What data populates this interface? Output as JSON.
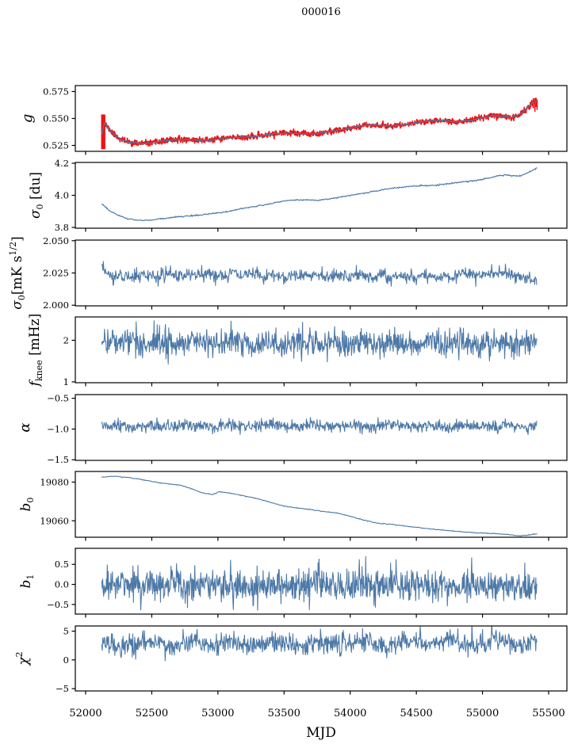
{
  "chart_data": {
    "type": "line",
    "title": "000016",
    "xlabel": "MJD",
    "xlim": [
      51922,
      55638
    ],
    "x_data_range": [
      52122,
      55410
    ],
    "xticks": [
      {
        "v": 52000,
        "label": "52000"
      },
      {
        "v": 52500,
        "label": "52500"
      },
      {
        "v": 53000,
        "label": "53000"
      },
      {
        "v": 53500,
        "label": "53500"
      },
      {
        "v": 54000,
        "label": "54000"
      },
      {
        "v": 54500,
        "label": "54500"
      },
      {
        "v": 55000,
        "label": "55000"
      },
      {
        "v": 55500,
        "label": "55500"
      }
    ],
    "colors": {
      "blue": "#4d79a7",
      "red": "#f21111",
      "axis": "#000000",
      "background": "#ffffff"
    },
    "panels": [
      {
        "name": "g",
        "ylabel": [
          {
            "t": "g",
            "italic": true
          }
        ],
        "ylim": [
          0.5195,
          0.5805
        ],
        "yticks": [
          {
            "v": 0.575,
            "label": "0.575"
          },
          {
            "v": 0.55,
            "label": "0.550"
          },
          {
            "v": 0.525,
            "label": "0.525"
          }
        ],
        "trend": [
          [
            52122,
            0.535
          ],
          [
            52142,
            0.5458
          ],
          [
            52175,
            0.5405
          ],
          [
            52215,
            0.5352
          ],
          [
            52265,
            0.5306
          ],
          [
            52335,
            0.5278
          ],
          [
            52425,
            0.5268
          ],
          [
            52505,
            0.5273
          ],
          [
            52585,
            0.529
          ],
          [
            52665,
            0.5303
          ],
          [
            52765,
            0.5306
          ],
          [
            52855,
            0.5298
          ],
          [
            52955,
            0.5301
          ],
          [
            53055,
            0.5317
          ],
          [
            53155,
            0.5326
          ],
          [
            53255,
            0.5329
          ],
          [
            53355,
            0.5344
          ],
          [
            53435,
            0.5359
          ],
          [
            53525,
            0.5366
          ],
          [
            53625,
            0.5359
          ],
          [
            53725,
            0.5359
          ],
          [
            53825,
            0.5374
          ],
          [
            53925,
            0.5394
          ],
          [
            54025,
            0.542
          ],
          [
            54125,
            0.5439
          ],
          [
            54225,
            0.5437
          ],
          [
            54305,
            0.5429
          ],
          [
            54405,
            0.544
          ],
          [
            54505,
            0.5464
          ],
          [
            54605,
            0.5477
          ],
          [
            54705,
            0.548
          ],
          [
            54805,
            0.5469
          ],
          [
            54905,
            0.548
          ],
          [
            55005,
            0.551
          ],
          [
            55085,
            0.5527
          ],
          [
            55165,
            0.5519
          ],
          [
            55225,
            0.551
          ],
          [
            55270,
            0.553
          ],
          [
            55315,
            0.5568
          ],
          [
            55355,
            0.5618
          ],
          [
            55390,
            0.5658
          ],
          [
            55410,
            0.5662
          ]
        ],
        "series": [
          {
            "name": "gain-data",
            "color": "#f21111",
            "width": 1.7,
            "n": 1500,
            "noise": 0.0013,
            "seed": 11
          },
          {
            "name": "gain-smooth",
            "color": "#4d79a7",
            "width": 1.25,
            "n": 500,
            "noise": 0.00035,
            "seed": 12
          }
        ],
        "extras": {
          "bands": [
            {
              "x1": 52117,
              "x2": 52149,
              "y1": 0.5215,
              "y2": 0.5537,
              "color": "#f21111"
            }
          ],
          "vlines": [
            {
              "x": 55384,
              "y1": 0.5595,
              "y2": 0.5688,
              "color": "#f21111"
            },
            {
              "x": 55396,
              "y1": 0.5562,
              "y2": 0.569,
              "color": "#f21111"
            },
            {
              "x": 55405,
              "y1": 0.5606,
              "y2": 0.5692,
              "color": "#f21111"
            },
            {
              "x": 55413,
              "y1": 0.558,
              "y2": 0.5676,
              "color": "#f21111"
            }
          ]
        }
      },
      {
        "name": "sigma0_du",
        "ylabel": [
          {
            "t": "σ",
            "italic": true
          },
          {
            "t": "0",
            "pos": "sub"
          },
          {
            "t": " [du]"
          }
        ],
        "ylim": [
          3.795,
          4.205
        ],
        "yticks": [
          {
            "v": 4.2,
            "label": "4.2"
          },
          {
            "v": 4.0,
            "label": "4.0"
          },
          {
            "v": 3.8,
            "label": "3.8"
          }
        ],
        "trend": [
          [
            52122,
            3.948
          ],
          [
            52180,
            3.905
          ],
          [
            52250,
            3.872
          ],
          [
            52330,
            3.852
          ],
          [
            52420,
            3.843
          ],
          [
            52500,
            3.846
          ],
          [
            52580,
            3.855
          ],
          [
            52680,
            3.864
          ],
          [
            52780,
            3.872
          ],
          [
            52880,
            3.878
          ],
          [
            52980,
            3.888
          ],
          [
            53080,
            3.9
          ],
          [
            53180,
            3.918
          ],
          [
            53280,
            3.93
          ],
          [
            53380,
            3.946
          ],
          [
            53480,
            3.962
          ],
          [
            53560,
            3.97
          ],
          [
            53650,
            3.972
          ],
          [
            53750,
            3.969
          ],
          [
            53850,
            3.978
          ],
          [
            53950,
            3.992
          ],
          [
            54050,
            4.006
          ],
          [
            54150,
            4.02
          ],
          [
            54250,
            4.036
          ],
          [
            54350,
            4.047
          ],
          [
            54450,
            4.055
          ],
          [
            54550,
            4.06
          ],
          [
            54650,
            4.064
          ],
          [
            54750,
            4.073
          ],
          [
            54850,
            4.084
          ],
          [
            54950,
            4.093
          ],
          [
            55050,
            4.108
          ],
          [
            55120,
            4.122
          ],
          [
            55180,
            4.128
          ],
          [
            55240,
            4.12
          ],
          [
            55290,
            4.122
          ],
          [
            55340,
            4.14
          ],
          [
            55390,
            4.162
          ],
          [
            55410,
            4.168
          ]
        ],
        "series": [
          {
            "name": "sigma0-du-line",
            "color": "#4d79a7",
            "width": 1.15,
            "n": 700,
            "noise": 0.0022,
            "seed": 21
          }
        ]
      },
      {
        "name": "sigma0_mK",
        "ylabel": [
          {
            "t": "σ",
            "italic": true
          },
          {
            "t": "0",
            "pos": "sub"
          },
          {
            "t": "[mK s"
          },
          {
            "t": "1/2",
            "pos": "sup"
          },
          {
            "t": "]"
          }
        ],
        "ylim": [
          1.9995,
          2.0505
        ],
        "yticks": [
          {
            "v": 2.05,
            "label": "2.050"
          },
          {
            "v": 2.025,
            "label": "2.025"
          },
          {
            "v": 2.0,
            "label": "2.000"
          }
        ],
        "trend": [
          [
            52122,
            2.0295
          ],
          [
            52160,
            2.0235
          ],
          [
            52250,
            2.0225
          ],
          [
            52500,
            2.023
          ],
          [
            52800,
            2.0235
          ],
          [
            53100,
            2.024
          ],
          [
            53400,
            2.023
          ],
          [
            53700,
            2.0235
          ],
          [
            54000,
            2.023
          ],
          [
            54300,
            2.022
          ],
          [
            54600,
            2.0225
          ],
          [
            54900,
            2.0235
          ],
          [
            55150,
            2.025
          ],
          [
            55250,
            2.024
          ],
          [
            55330,
            2.0195
          ],
          [
            55410,
            2.0205
          ]
        ],
        "series": [
          {
            "name": "sigma0-mk-line",
            "color": "#4d79a7",
            "width": 1.1,
            "n": 850,
            "noise": 0.0026,
            "seed": 31,
            "wobble": {
              "amp": 0.001,
              "period": 160,
              "phase": 0.7
            }
          }
        ]
      },
      {
        "name": "f_knee",
        "ylabel": [
          {
            "t": "f",
            "italic": true
          },
          {
            "t": "knee",
            "pos": "sub"
          },
          {
            "t": " [mHz]"
          }
        ],
        "ylim": [
          0.98,
          2.56
        ],
        "yticks": [
          {
            "v": 2,
            "label": "2"
          },
          {
            "v": 1,
            "label": "1"
          }
        ],
        "trend": [
          [
            52122,
            2.02
          ],
          [
            52400,
            1.95
          ],
          [
            53000,
            1.95
          ],
          [
            53500,
            1.93
          ],
          [
            54000,
            1.92
          ],
          [
            54500,
            1.93
          ],
          [
            55000,
            1.95
          ],
          [
            55410,
            1.93
          ]
        ],
        "series": [
          {
            "name": "fknee-line",
            "color": "#4d79a7",
            "width": 1.1,
            "n": 950,
            "noise": 0.165,
            "seed": 41,
            "wobble": {
              "amp": 0.04,
              "period": 250,
              "phase": 2.1
            }
          }
        ]
      },
      {
        "name": "alpha",
        "ylabel": [
          {
            "t": "α",
            "italic": true
          }
        ],
        "ylim": [
          -1.51,
          -0.44
        ],
        "yticks": [
          {
            "v": -0.5,
            "label": "−0.5"
          },
          {
            "v": -1.0,
            "label": "−1.0"
          },
          {
            "v": -1.5,
            "label": "−1.5"
          }
        ],
        "trend": [
          [
            52122,
            -0.975
          ],
          [
            52300,
            -0.96
          ],
          [
            53000,
            -0.955
          ],
          [
            54000,
            -0.952
          ],
          [
            55000,
            -0.952
          ],
          [
            55410,
            -0.95
          ]
        ],
        "series": [
          {
            "name": "alpha-line",
            "color": "#4d79a7",
            "width": 1.1,
            "n": 900,
            "noise": 0.048,
            "seed": 51,
            "wobble": {
              "amp": 0.012,
              "period": 300,
              "phase": 0.2
            }
          }
        ]
      },
      {
        "name": "b0",
        "ylabel": [
          {
            "t": "b",
            "italic": true
          },
          {
            "t": "0",
            "pos": "sub"
          }
        ],
        "ylim": [
          19051.5,
          19085.5
        ],
        "yticks": [
          {
            "v": 19080,
            "label": "19080"
          },
          {
            "v": 19060,
            "label": "19060"
          }
        ],
        "trend": [
          [
            52122,
            19082.6
          ],
          [
            52220,
            19083.0
          ],
          [
            52320,
            19082.4
          ],
          [
            52400,
            19081.6
          ],
          [
            52480,
            19080.6
          ],
          [
            52560,
            19079.6
          ],
          [
            52640,
            19079.0
          ],
          [
            52720,
            19078.4
          ],
          [
            52800,
            19076.6
          ],
          [
            52880,
            19074.4
          ],
          [
            52960,
            19073.6
          ],
          [
            53010,
            19075.0
          ],
          [
            53100,
            19074.2
          ],
          [
            53200,
            19072.8
          ],
          [
            53300,
            19071.4
          ],
          [
            53400,
            19069.4
          ],
          [
            53500,
            19067.6
          ],
          [
            53600,
            19066.6
          ],
          [
            53700,
            19065.8
          ],
          [
            53800,
            19064.8
          ],
          [
            53900,
            19064.0
          ],
          [
            54000,
            19062.4
          ],
          [
            54100,
            19060.4
          ],
          [
            54200,
            19058.8
          ],
          [
            54300,
            19058.2
          ],
          [
            54400,
            19057.4
          ],
          [
            54500,
            19056.6
          ],
          [
            54600,
            19055.8
          ],
          [
            54700,
            19055.2
          ],
          [
            54800,
            19054.6
          ],
          [
            54900,
            19054.0
          ],
          [
            55000,
            19053.6
          ],
          [
            55100,
            19053.4
          ],
          [
            55200,
            19052.8
          ],
          [
            55280,
            19052.2
          ],
          [
            55340,
            19052.6
          ],
          [
            55410,
            19053.2
          ]
        ],
        "series": [
          {
            "name": "b0-line",
            "color": "#4d79a7",
            "width": 1.1,
            "n": 700,
            "noise": 0.1,
            "seed": 61
          }
        ]
      },
      {
        "name": "b1",
        "ylabel": [
          {
            "t": "b",
            "italic": true
          },
          {
            "t": "1",
            "pos": "sub"
          }
        ],
        "ylim": [
          -0.74,
          0.9
        ],
        "yticks": [
          {
            "v": 0.5,
            "label": "0.5"
          },
          {
            "v": 0.0,
            "label": "0.0"
          },
          {
            "v": -0.5,
            "label": "−0.5"
          }
        ],
        "trend": [
          [
            52122,
            0.0
          ],
          [
            55410,
            -0.03
          ]
        ],
        "series": [
          {
            "name": "b1-line",
            "color": "#4d79a7",
            "width": 1.1,
            "n": 950,
            "noise": 0.21,
            "seed": 71
          }
        ]
      },
      {
        "name": "chi2",
        "ylabel": [
          {
            "t": "χ",
            "italic": true
          },
          {
            "t": "2",
            "pos": "sup"
          }
        ],
        "ylim": [
          -5.4,
          5.9
        ],
        "yticks": [
          {
            "v": 5,
            "label": "5"
          },
          {
            "v": 0,
            "label": "0"
          },
          {
            "v": -5,
            "label": "−5"
          }
        ],
        "trend": [
          [
            52122,
            2.4
          ],
          [
            52300,
            2.8
          ],
          [
            53000,
            2.9
          ],
          [
            54000,
            2.9
          ],
          [
            55000,
            3.1
          ],
          [
            55410,
            3.0
          ]
        ],
        "series": [
          {
            "name": "chi2-line",
            "color": "#4d79a7",
            "width": 1.1,
            "n": 900,
            "noise": 0.9,
            "seed": 81,
            "wobble": {
              "amp": 0.45,
              "period": 330,
              "phase": 1.3
            }
          }
        ]
      }
    ]
  }
}
